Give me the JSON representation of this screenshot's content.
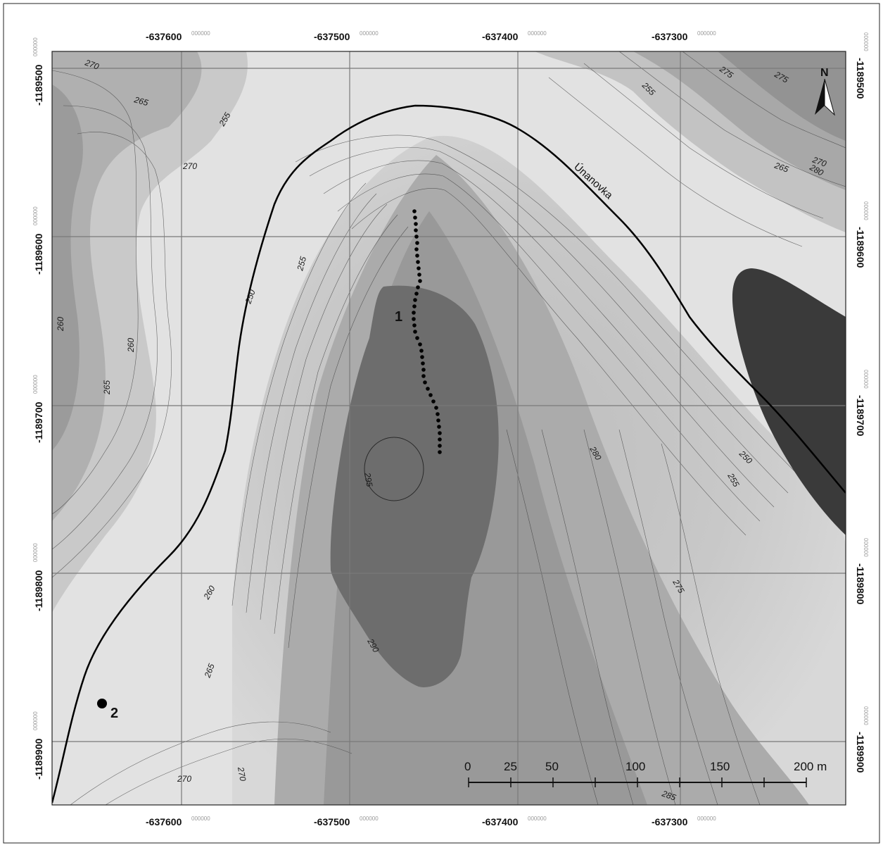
{
  "map": {
    "frame_x_labels": [
      {
        "value": "-637600",
        "decimals": "000000"
      },
      {
        "value": "-637500",
        "decimals": "000000"
      },
      {
        "value": "-637400",
        "decimals": "000000"
      },
      {
        "value": "-637300",
        "decimals": "000000"
      }
    ],
    "frame_y_labels": [
      {
        "value": "-1189500",
        "decimals": "000000"
      },
      {
        "value": "-1189600",
        "decimals": "000000"
      },
      {
        "value": "-1189700",
        "decimals": "000000"
      },
      {
        "value": "-1189800",
        "decimals": "000000"
      },
      {
        "value": "-1189900",
        "decimals": "000000"
      }
    ],
    "north_arrow_label": "N",
    "river_name": "Únanovka",
    "markers": [
      {
        "label": "1",
        "type": "dotted-line"
      },
      {
        "label": "2",
        "type": "point"
      }
    ],
    "contour_labels": [
      {
        "text": "270"
      },
      {
        "text": "265"
      },
      {
        "text": "255"
      },
      {
        "text": "255"
      },
      {
        "text": "250"
      },
      {
        "text": "260"
      },
      {
        "text": "275"
      },
      {
        "text": "270"
      },
      {
        "text": "260"
      },
      {
        "text": "265"
      },
      {
        "text": "295"
      },
      {
        "text": "290"
      },
      {
        "text": "265"
      },
      {
        "text": "270"
      },
      {
        "text": "270"
      },
      {
        "text": "280"
      },
      {
        "text": "275"
      },
      {
        "text": "285"
      },
      {
        "text": "250"
      },
      {
        "text": "255"
      },
      {
        "text": "255"
      },
      {
        "text": "260"
      },
      {
        "text": "275"
      },
      {
        "text": "280"
      },
      {
        "text": "265"
      },
      {
        "text": "270"
      }
    ],
    "scale_bar": {
      "ticks": [
        "0",
        "25",
        "50",
        "100",
        "150",
        "200 m"
      ]
    },
    "colors": {
      "lowland": "#e4e4e4",
      "mid_terrain": "#b5b5b5",
      "summit_zone": "#6c6c6c",
      "dark_zone": "#3a3a3a",
      "river": "#000000",
      "grid": "#7a7a7a"
    }
  }
}
